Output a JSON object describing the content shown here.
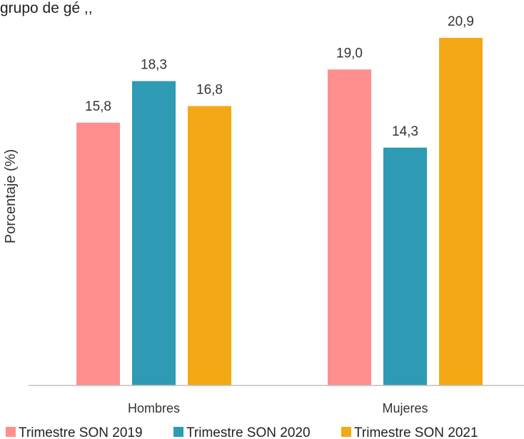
{
  "page": {
    "top_fragment": "grupo de gé ,, "
  },
  "chart_data": {
    "type": "bar",
    "title": "",
    "xlabel": "",
    "ylabel": "Porcentaje (%)",
    "categories": [
      "Hombres",
      "Mujeres"
    ],
    "series": [
      {
        "name": "Trimestre SON 2019",
        "color": "#FF8F8F",
        "values": [
          15.8,
          19.0
        ],
        "labels": [
          "15,8",
          "19,0"
        ]
      },
      {
        "name": "Trimestre SON 2020",
        "color": "#2E9AB3",
        "values": [
          18.3,
          14.3
        ],
        "labels": [
          "18,3",
          "14,3"
        ]
      },
      {
        "name": "Trimestre SON 2021",
        "color": "#F3A916",
        "values": [
          16.8,
          20.9
        ],
        "labels": [
          "16,8",
          "20,9"
        ]
      }
    ],
    "ylim": [
      0,
      23
    ],
    "grid": false,
    "legend_position": "bottom"
  }
}
